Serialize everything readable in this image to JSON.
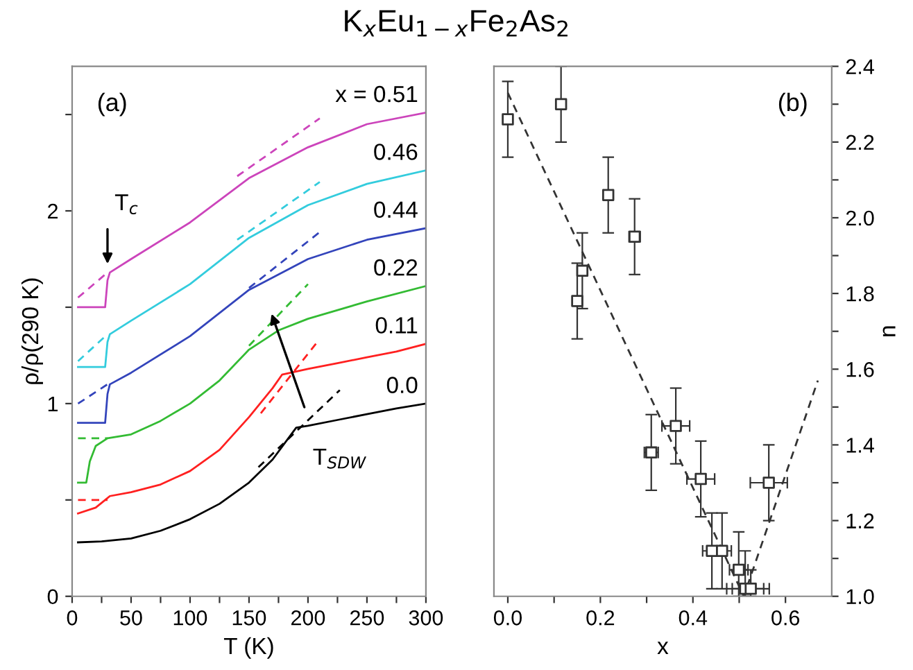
{
  "chart_data": [
    {
      "type": "line",
      "title": "K$_{x}$Eu$_{1−x}$Fe$_{2}$As$_{2}$",
      "xlabel": "T (K)",
      "ylabel": "ρ/ρ(290 K)",
      "xlim": [
        0,
        300
      ],
      "ylim": [
        0,
        2.75
      ],
      "xticks": [
        0,
        {
          "value": 25,
          "label": null
        },
        50,
        {
          "value": 75,
          "label": null
        },
        100,
        {
          "value": 125,
          "label": null
        },
        150,
        {
          "value": 175,
          "label": null
        },
        200,
        {
          "value": 225,
          "label": null
        },
        250,
        {
          "value": 275,
          "label": null
        },
        300
      ],
      "yticks": [
        0,
        {
          "value": 0.5,
          "label": null
        },
        1,
        {
          "value": 1.5,
          "label": null
        },
        2,
        {
          "value": 2.5,
          "label": null
        }
      ],
      "grid": false,
      "legend": false,
      "annotations": [
        "(a)",
        "T$_{c}$",
        "T$_{SDW}$"
      ],
      "series": [
        {
          "name": "0.0",
          "color": "#000000",
          "x": [
            5,
            25,
            50,
            75,
            100,
            125,
            150,
            170,
            190,
            200,
            225,
            250,
            275,
            300
          ],
          "values": [
            0.28,
            0.285,
            0.3,
            0.34,
            0.4,
            0.48,
            0.59,
            0.71,
            0.875,
            0.885,
            0.915,
            0.945,
            0.975,
            1.0
          ]
        },
        {
          "color": "#000000",
          "line_style": "dashed",
          "x": [
            158,
            227
          ],
          "values": [
            0.67,
            1.07
          ]
        },
        {
          "name": "0.11",
          "color": "#ff2020",
          "x": [
            5,
            20,
            28,
            32,
            50,
            75,
            100,
            125,
            150,
            170,
            178,
            200,
            225,
            250,
            275,
            300
          ],
          "values": [
            0.43,
            0.46,
            0.5,
            0.52,
            0.54,
            0.58,
            0.65,
            0.76,
            0.93,
            1.08,
            1.15,
            1.18,
            1.21,
            1.24,
            1.27,
            1.31
          ]
        },
        {
          "color": "#ff2020",
          "line_style": "dashed",
          "x": [
            5,
            30
          ],
          "values": [
            0.5,
            0.5
          ]
        },
        {
          "color": "#ff2020",
          "line_style": "dashed",
          "x": [
            160,
            208
          ],
          "values": [
            0.95,
            1.32
          ]
        },
        {
          "name": "0.22",
          "color": "#33bb33",
          "x": [
            5,
            12,
            15,
            20,
            30,
            50,
            75,
            100,
            125,
            150,
            175,
            200,
            250,
            300
          ],
          "values": [
            0.59,
            0.59,
            0.7,
            0.78,
            0.82,
            0.84,
            0.91,
            1.0,
            1.12,
            1.28,
            1.38,
            1.44,
            1.53,
            1.61
          ]
        },
        {
          "color": "#33bb33",
          "line_style": "dashed",
          "x": [
            5,
            30
          ],
          "values": [
            0.82,
            0.82
          ]
        },
        {
          "color": "#33bb33",
          "line_style": "dashed",
          "x": [
            150,
            200
          ],
          "values": [
            1.3,
            1.62
          ]
        },
        {
          "name": "0.44",
          "color": "#3344bb",
          "x": [
            5,
            28,
            30,
            32,
            50,
            100,
            150,
            200,
            250,
            300
          ],
          "values": [
            0.9,
            0.9,
            1.05,
            1.1,
            1.16,
            1.35,
            1.59,
            1.75,
            1.85,
            1.91
          ]
        },
        {
          "color": "#3344bb",
          "line_style": "dashed",
          "x": [
            5,
            30
          ],
          "values": [
            1.0,
            1.1
          ]
        },
        {
          "color": "#3344bb",
          "line_style": "dashed",
          "x": [
            150,
            210
          ],
          "values": [
            1.6,
            1.89
          ]
        },
        {
          "name": "0.46",
          "color": "#33ccdd",
          "x": [
            5,
            28,
            30,
            32,
            50,
            100,
            150,
            200,
            250,
            300
          ],
          "values": [
            1.19,
            1.19,
            1.32,
            1.36,
            1.43,
            1.62,
            1.86,
            2.03,
            2.14,
            2.21
          ]
        },
        {
          "color": "#33ccdd",
          "line_style": "dashed",
          "x": [
            5,
            30
          ],
          "values": [
            1.22,
            1.36
          ]
        },
        {
          "color": "#33ccdd",
          "line_style": "dashed",
          "x": [
            140,
            210
          ],
          "values": [
            1.85,
            2.15
          ]
        },
        {
          "name": "x = 0.51",
          "color": "#cc44bb",
          "x": [
            5,
            28,
            30,
            32,
            50,
            100,
            150,
            200,
            250,
            300
          ],
          "values": [
            1.5,
            1.5,
            1.64,
            1.68,
            1.75,
            1.94,
            2.17,
            2.33,
            2.45,
            2.51
          ]
        },
        {
          "color": "#cc44bb",
          "line_style": "dashed",
          "x": [
            5,
            30
          ],
          "values": [
            1.55,
            1.68
          ]
        },
        {
          "color": "#cc44bb",
          "line_style": "dashed",
          "x": [
            140,
            210
          ],
          "values": [
            2.18,
            2.48
          ]
        }
      ]
    },
    {
      "type": "scatter",
      "xlabel": "x",
      "ylabel": "n",
      "xlim": [
        -0.03,
        0.7
      ],
      "ylim": [
        1.0,
        2.4
      ],
      "xticks": [
        {
          "value": 0,
          "label": "0.0"
        },
        {
          "value": 0.1,
          "label": null
        },
        0.2,
        {
          "value": 0.3,
          "label": null
        },
        0.4,
        {
          "value": 0.5,
          "label": null
        },
        0.6
      ],
      "yticks": [
        {
          "value": 1,
          "label": "1.0"
        },
        {
          "value": 1.1,
          "label": null
        },
        1.2,
        {
          "value": 1.3,
          "label": null
        },
        1.4,
        {
          "value": 1.5,
          "label": null
        },
        1.6,
        {
          "value": 1.7,
          "label": null
        },
        1.8,
        {
          "value": 1.9,
          "label": null
        },
        {
          "value": 2,
          "label": "2.0"
        },
        {
          "value": 2.1,
          "label": null
        },
        2.2,
        {
          "value": 2.3,
          "label": null
        },
        2.4
      ],
      "grid": false,
      "legend": false,
      "marker": "square",
      "annotations": [
        "(b)"
      ],
      "series": [
        {
          "color": "#333333",
          "x": [
            0.0,
            0.115,
            0.217,
            0.274,
            0.161,
            0.15,
            0.31,
            0.363,
            0.417,
            0.441,
            0.463,
            0.499,
            0.513,
            0.525,
            0.564
          ],
          "values": [
            2.26,
            2.3,
            2.06,
            1.95,
            1.86,
            1.78,
            1.38,
            1.45,
            1.31,
            1.12,
            1.12,
            1.07,
            1.02,
            1.02,
            1.3
          ],
          "errors": [
            0.1,
            0.1,
            0.1,
            0.1,
            0.1,
            0.1,
            0.1,
            0.1,
            0.1,
            0.1,
            0.1,
            [
              1.0,
              1.17
            ],
            [
              1.0,
              1.12
            ],
            [
              1.0,
              1.07
            ],
            0.1
          ],
          "xerrors": [
            null,
            null,
            0.01,
            0.012,
            0.01,
            null,
            0.015,
            0.03,
            0.03,
            0.02,
            0.02,
            0.02,
            0.04,
            0.04,
            0.04
          ]
        },
        {
          "type": "line",
          "marker": "none",
          "color": "#333333",
          "line_style": "dashed",
          "x": [
            0.0,
            0.51,
            0.67
          ],
          "values": [
            2.33,
            1.0,
            1.57
          ]
        }
      ]
    }
  ]
}
